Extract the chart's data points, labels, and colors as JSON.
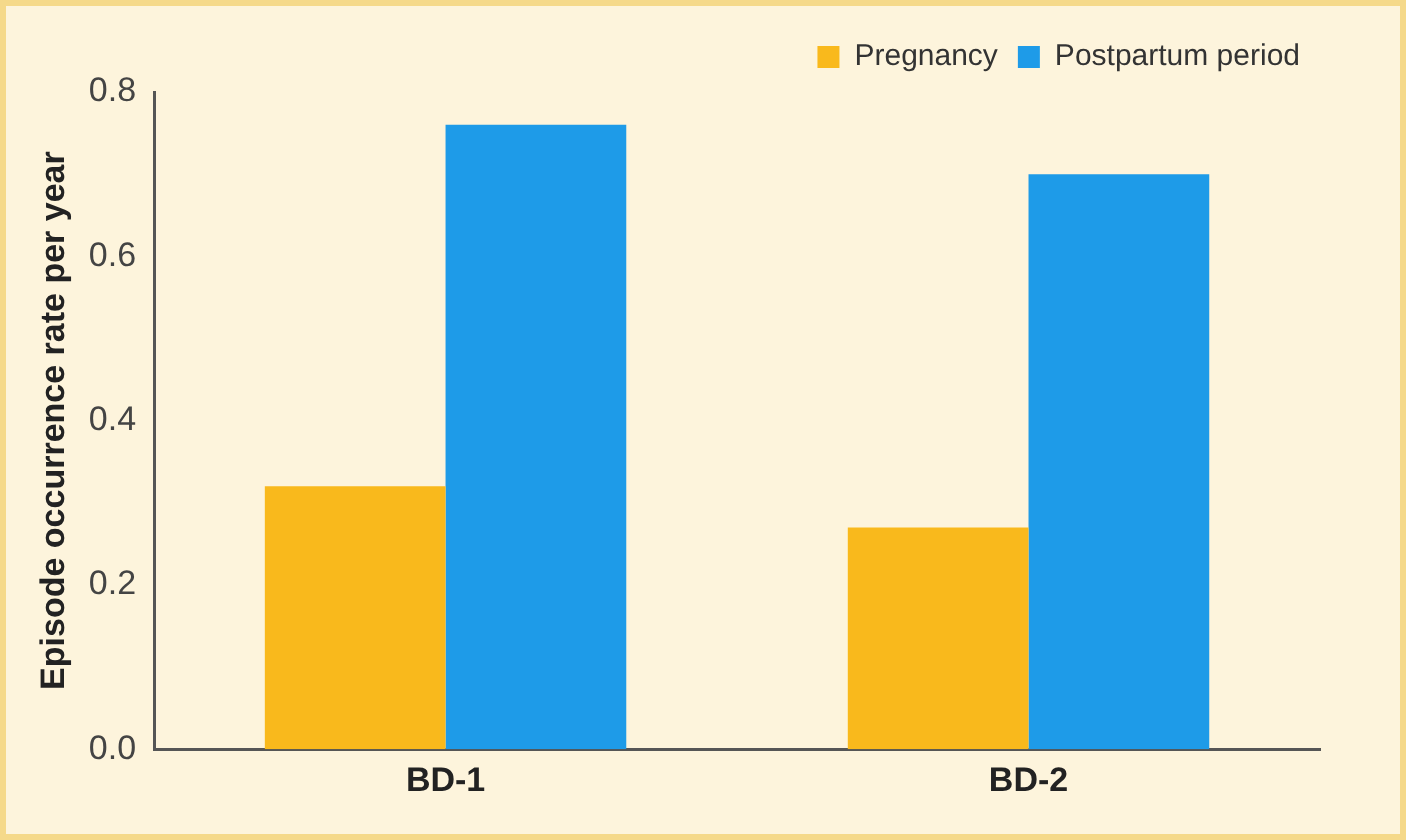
{
  "chart_data": {
    "type": "bar",
    "ylabel": "Episode occurrence rate per year",
    "categories": [
      "BD-1",
      "BD-2"
    ],
    "series": [
      {
        "name": "Pregnancy",
        "color": "#f9b91c",
        "values": [
          0.32,
          0.27
        ]
      },
      {
        "name": "Postpartum period",
        "color": "#1e9be8",
        "values": [
          0.76,
          0.7
        ]
      }
    ],
    "ylim": [
      0,
      0.8
    ],
    "yticks": [
      {
        "value": 0,
        "label": "0.0"
      },
      {
        "value": 0.2,
        "label": "0.2"
      },
      {
        "value": 0.4,
        "label": "0.4"
      },
      {
        "value": 0.6,
        "label": "0.6"
      },
      {
        "value": 0.8,
        "label": "0.8"
      }
    ],
    "grid": false,
    "legend": "top right"
  }
}
